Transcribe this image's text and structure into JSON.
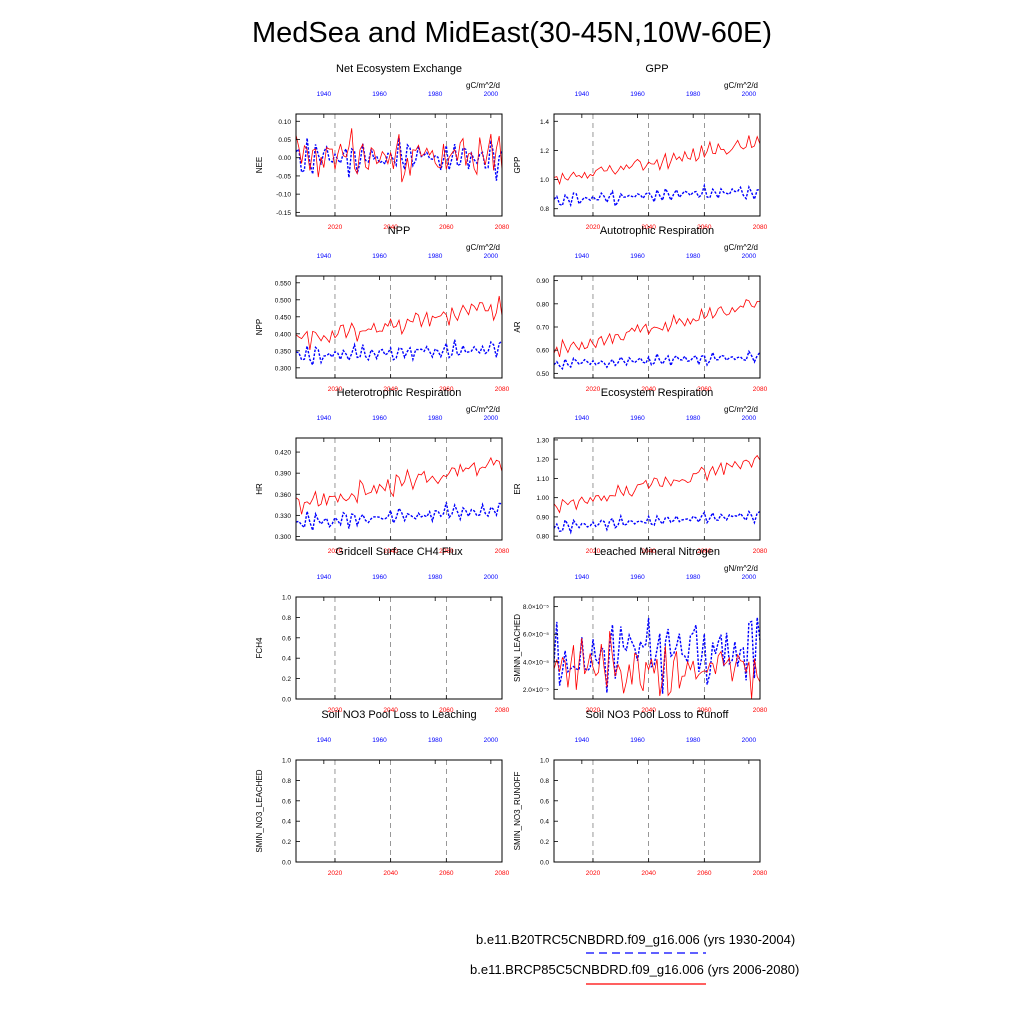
{
  "title": "MedSea and MidEast(30-45N,10W-60E)",
  "colors": {
    "run1": "#0000ff",
    "run2": "#ff0000",
    "axis": "#000000",
    "grid": "#555555"
  },
  "top_axis": {
    "label_color": "blue",
    "ticks": [
      1940,
      1960,
      1980,
      2000
    ],
    "range": [
      1930,
      2004
    ]
  },
  "bottom_axis": {
    "label_color": "red",
    "ticks": [
      2020,
      2040,
      2060,
      2080
    ],
    "range": [
      2006,
      2080
    ]
  },
  "legend": {
    "run1": "b.e11.B20TRC5CNBDRD.f09_g16.006 (yrs 1930-2004)",
    "run2": "b.e11.BRCP85C5CNBDRD.f09_g16.006 (yrs 2006-2080)"
  },
  "chart_data": [
    {
      "type": "line",
      "title": "Net Ecosystem Exchange",
      "ylabel": "NEE",
      "units": "gC/m^2/d",
      "ylim": [
        -0.16,
        0.12
      ],
      "yticks": [
        "0.10",
        "0.05",
        "0.00",
        "-0.05",
        "-0.10",
        "-0.15"
      ],
      "ytick_values": [
        0.1,
        0.05,
        0.0,
        -0.05,
        -0.1,
        -0.15
      ],
      "series": [
        {
          "name": "b.e11.B20TRC5CNBDRD.f09_g16.006",
          "style": "dashed",
          "base": 0.0,
          "trend": 0.0,
          "amp": 0.045,
          "noise": 0.02,
          "seed": 11
        },
        {
          "name": "b.e11.BRCP85C5CNBDRD.f09_g16.006",
          "style": "solid",
          "base": 0.0,
          "trend": 0.0,
          "amp": 0.04,
          "noise": 0.045,
          "seed": 23
        }
      ]
    },
    {
      "type": "line",
      "title": "GPP",
      "ylabel": "GPP",
      "units": "gC/m^2/d",
      "ylim": [
        0.75,
        1.45
      ],
      "yticks": [
        "1.4",
        "1.2",
        "1.0",
        "0.8"
      ],
      "ytick_values": [
        1.4,
        1.2,
        1.0,
        0.8
      ],
      "series": [
        {
          "name": "b.e11.B20TRC5CNBDRD.f09_g16.006",
          "style": "dashed",
          "base": 0.86,
          "trend": 0.06,
          "amp": 0.05,
          "noise": 0.02,
          "seed": 31
        },
        {
          "name": "b.e11.BRCP85C5CNBDRD.f09_g16.006",
          "style": "solid",
          "base": 0.98,
          "trend": 0.28,
          "amp": 0.04,
          "noise": 0.04,
          "seed": 37
        }
      ]
    },
    {
      "type": "line",
      "title": "NPP",
      "ylabel": "NPP",
      "units": "gC/m^2/d",
      "ylim": [
        0.27,
        0.57
      ],
      "yticks": [
        "0.550",
        "0.500",
        "0.450",
        "0.400",
        "0.350",
        "0.300"
      ],
      "ytick_values": [
        0.55,
        0.5,
        0.45,
        0.4,
        0.35,
        0.3
      ],
      "series": [
        {
          "name": "b.e11.B20TRC5CNBDRD.f09_g16.006",
          "style": "dashed",
          "base": 0.335,
          "trend": 0.02,
          "amp": 0.025,
          "noise": 0.012,
          "seed": 41
        },
        {
          "name": "b.e11.BRCP85C5CNBDRD.f09_g16.006",
          "style": "solid",
          "base": 0.38,
          "trend": 0.1,
          "amp": 0.02,
          "noise": 0.02,
          "seed": 43
        }
      ]
    },
    {
      "type": "line",
      "title": "Autotrophic Respiration",
      "ylabel": "AR",
      "units": "gC/m^2/d",
      "ylim": [
        0.48,
        0.92
      ],
      "yticks": [
        "0.90",
        "0.80",
        "0.70",
        "0.60",
        "0.50"
      ],
      "ytick_values": [
        0.9,
        0.8,
        0.7,
        0.6,
        0.5
      ],
      "series": [
        {
          "name": "b.e11.B20TRC5CNBDRD.f09_g16.006",
          "style": "dashed",
          "base": 0.54,
          "trend": 0.03,
          "amp": 0.025,
          "noise": 0.01,
          "seed": 51
        },
        {
          "name": "b.e11.BRCP85C5CNBDRD.f09_g16.006",
          "style": "solid",
          "base": 0.6,
          "trend": 0.2,
          "amp": 0.02,
          "noise": 0.025,
          "seed": 53
        }
      ]
    },
    {
      "type": "line",
      "title": "Heterotrophic Respiration",
      "ylabel": "HR",
      "units": "gC/m^2/d",
      "ylim": [
        0.295,
        0.44
      ],
      "yticks": [
        "0.420",
        "0.390",
        "0.360",
        "0.330",
        "0.300"
      ],
      "ytick_values": [
        0.42,
        0.39,
        0.36,
        0.33,
        0.3
      ],
      "series": [
        {
          "name": "b.e11.B20TRC5CNBDRD.f09_g16.006",
          "style": "dashed",
          "base": 0.318,
          "trend": 0.02,
          "amp": 0.012,
          "noise": 0.006,
          "seed": 61
        },
        {
          "name": "b.e11.BRCP85C5CNBDRD.f09_g16.006",
          "style": "solid",
          "base": 0.345,
          "trend": 0.06,
          "amp": 0.01,
          "noise": 0.01,
          "seed": 67
        }
      ]
    },
    {
      "type": "line",
      "title": "Ecosystem Respiration",
      "ylabel": "ER",
      "units": "gC/m^2/d",
      "ylim": [
        0.78,
        1.31
      ],
      "yticks": [
        "1.30",
        "1.20",
        "1.10",
        "1.00",
        "0.90",
        "0.80"
      ],
      "ytick_values": [
        1.3,
        1.2,
        1.1,
        1.0,
        0.9,
        0.8
      ],
      "series": [
        {
          "name": "b.e11.B20TRC5CNBDRD.f09_g16.006",
          "style": "dashed",
          "base": 0.85,
          "trend": 0.06,
          "amp": 0.03,
          "noise": 0.01,
          "seed": 71
        },
        {
          "name": "b.e11.BRCP85C5CNBDRD.f09_g16.006",
          "style": "solid",
          "base": 0.94,
          "trend": 0.26,
          "amp": 0.025,
          "noise": 0.03,
          "seed": 73
        }
      ]
    },
    {
      "type": "line",
      "title": "Gridcell Surface CH4 Flux",
      "ylabel": "FCH4",
      "units": "",
      "ylim": [
        0.0,
        1.0
      ],
      "yticks": [
        "1.0",
        "0.8",
        "0.6",
        "0.4",
        "0.2",
        "0.0"
      ],
      "ytick_values": [
        1.0,
        0.8,
        0.6,
        0.4,
        0.2,
        0.0
      ],
      "series": []
    },
    {
      "type": "line",
      "title": "Leached Mineral Nitrogen",
      "ylabel": "SMINN_LEACHED",
      "units": "gN/m^2/d",
      "ylim": [
        1.3,
        8.7
      ],
      "yticks": [
        "8.0×10⁻⁵",
        "6.0×10⁻⁵",
        "4.0×10⁻⁵",
        "2.0×10⁻⁵"
      ],
      "ytick_values": [
        8.0,
        6.0,
        4.0,
        2.0
      ],
      "series": [
        {
          "name": "b.e11.B20TRC5CNBDRD.f09_g16.006",
          "style": "dashed",
          "base": 4.2,
          "trend": 1.0,
          "amp": 1.6,
          "noise": 1.6,
          "seed": 81
        },
        {
          "name": "b.e11.BRCP85C5CNBDRD.f09_g16.006",
          "style": "solid",
          "base": 4.0,
          "trend": -0.8,
          "amp": 1.2,
          "noise": 1.5,
          "seed": 83
        }
      ]
    },
    {
      "type": "line",
      "title": "Soil NO3 Pool Loss to Leaching",
      "ylabel": "SMIN_NO3_LEACHED",
      "units": "",
      "ylim": [
        0.0,
        1.0
      ],
      "yticks": [
        "1.0",
        "0.8",
        "0.6",
        "0.4",
        "0.2",
        "0.0"
      ],
      "ytick_values": [
        1.0,
        0.8,
        0.6,
        0.4,
        0.2,
        0.0
      ],
      "series": []
    },
    {
      "type": "line",
      "title": "Soil NO3 Pool Loss to Runoff",
      "ylabel": "SMIN_NO3_RUNOFF",
      "units": "",
      "ylim": [
        0.0,
        1.0
      ],
      "yticks": [
        "1.0",
        "0.8",
        "0.6",
        "0.4",
        "0.2",
        "0.0"
      ],
      "ytick_values": [
        1.0,
        0.8,
        0.6,
        0.4,
        0.2,
        0.0
      ],
      "series": []
    }
  ]
}
